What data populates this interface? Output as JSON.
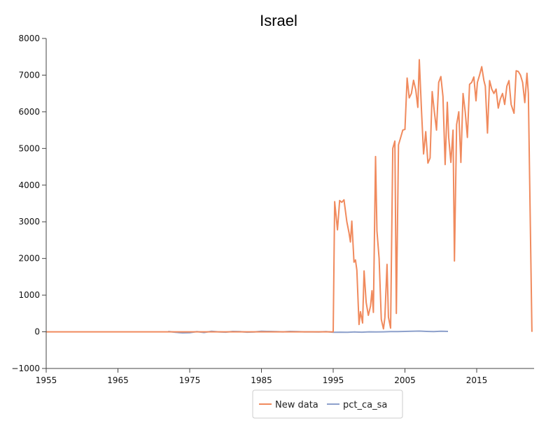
{
  "chart_data": {
    "type": "line",
    "title": "Israel",
    "xlabel": "",
    "ylabel": "",
    "xlim": [
      1955,
      2023
    ],
    "ylim": [
      -1000,
      8000
    ],
    "x_ticks": [
      1955,
      1965,
      1975,
      1985,
      1995,
      2005,
      2015
    ],
    "y_ticks": [
      -1000,
      0,
      1000,
      2000,
      3000,
      4000,
      5000,
      6000,
      7000,
      8000
    ],
    "x_tick_labels": [
      "1955",
      "1965",
      "1975",
      "1985",
      "1995",
      "2005",
      "2015"
    ],
    "y_tick_labels": [
      "−1000",
      "0",
      "1000",
      "2000",
      "3000",
      "4000",
      "5000",
      "6000",
      "7000",
      "8000"
    ],
    "grid": false,
    "legend_position": "bottom-center",
    "series": [
      {
        "name": "New data",
        "color": "#f08a5d",
        "x": [
          1955.0,
          1995.0,
          1995.2,
          1995.6,
          1995.9,
          1996.2,
          1996.5,
          1996.9,
          1997.2,
          1997.4,
          1997.6,
          1997.9,
          1998.1,
          1998.3,
          1998.6,
          1998.8,
          1999.1,
          1999.3,
          1999.6,
          1999.9,
          2000.2,
          2000.4,
          2000.6,
          2000.9,
          2001.1,
          2001.4,
          2001.7,
          2002.0,
          2002.2,
          2002.5,
          2002.7,
          2003.0,
          2003.3,
          2003.6,
          2003.8,
          2004.1,
          2004.4,
          2004.7,
          2005.0,
          2005.3,
          2005.6,
          2005.9,
          2006.2,
          2006.5,
          2006.8,
          2007.0,
          2007.3,
          2007.6,
          2007.9,
          2008.2,
          2008.5,
          2008.8,
          2009.1,
          2009.4,
          2009.7,
          2010.0,
          2010.3,
          2010.6,
          2010.9,
          2011.1,
          2011.4,
          2011.7,
          2011.9,
          2012.2,
          2012.5,
          2012.8,
          2013.1,
          2013.4,
          2013.7,
          2014.0,
          2014.3,
          2014.6,
          2014.9,
          2015.1,
          2015.4,
          2015.7,
          2016.0,
          2016.2,
          2016.5,
          2016.8,
          2017.1,
          2017.4,
          2017.7,
          2018.0,
          2018.3,
          2018.6,
          2018.9,
          2019.2,
          2019.5,
          2019.8,
          2020.2,
          2020.5,
          2020.8,
          2021.1,
          2021.4,
          2021.7,
          2022.0,
          2022.2,
          2022.7
        ],
        "values": [
          0,
          0,
          3550,
          2780,
          3580,
          3530,
          3600,
          3000,
          2700,
          2450,
          3020,
          1900,
          1960,
          1680,
          200,
          550,
          240,
          1660,
          800,
          450,
          700,
          1120,
          530,
          4780,
          2750,
          2000,
          340,
          80,
          380,
          1840,
          400,
          100,
          5000,
          5200,
          500,
          5100,
          5300,
          5500,
          5520,
          6920,
          6380,
          6500,
          6860,
          6600,
          6120,
          7420,
          6050,
          4850,
          5460,
          4600,
          4740,
          6550,
          6000,
          5500,
          6800,
          6960,
          6420,
          4560,
          6260,
          5300,
          4620,
          5500,
          1930,
          5650,
          6000,
          4620,
          6500,
          6000,
          5300,
          6750,
          6800,
          6950,
          6300,
          6800,
          7000,
          7230,
          6850,
          6700,
          5420,
          6850,
          6620,
          6500,
          6620,
          6100,
          6350,
          6500,
          6200,
          6700,
          6850,
          6200,
          5960,
          7120,
          7100,
          7000,
          6800,
          6250,
          7050,
          6500,
          0
        ]
      },
      {
        "name": "pct_ca_sa",
        "color": "#8da0cb",
        "x": [
          1972.0,
          1973.0,
          1974.0,
          1975.0,
          1976.0,
          1977.0,
          1978.0,
          1979.0,
          1980.0,
          1981.0,
          1982.0,
          1983.0,
          1984.0,
          1985.0,
          1986.0,
          1987.0,
          1988.0,
          1989.0,
          1990.0,
          1991.0,
          1992.0,
          1993.0,
          1994.0,
          1995.0,
          1996.0,
          1997.0,
          1998.0,
          1999.0,
          2000.0,
          2001.0,
          2002.0,
          2003.0,
          2004.0,
          2005.0,
          2006.0,
          2007.0,
          2008.0,
          2009.0,
          2010.0,
          2011.0
        ],
        "values": [
          10,
          -15,
          -30,
          -25,
          5,
          -20,
          15,
          0,
          -10,
          10,
          5,
          -10,
          -5,
          15,
          10,
          5,
          0,
          10,
          5,
          0,
          0,
          -5,
          5,
          -15,
          -10,
          -15,
          -5,
          -10,
          0,
          -5,
          0,
          5,
          5,
          10,
          15,
          20,
          10,
          5,
          15,
          10
        ]
      }
    ]
  }
}
